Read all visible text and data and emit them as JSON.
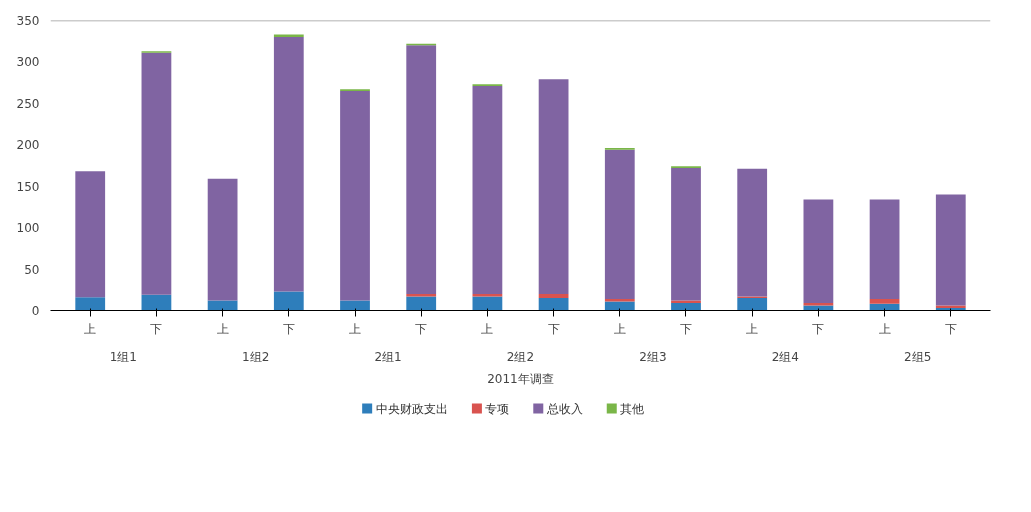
{
  "chart_data": {
    "type": "bar",
    "stacked": true,
    "categories": [
      "上",
      "下",
      "上",
      "下",
      "上",
      "下",
      "上",
      "下",
      "上",
      "下",
      "上",
      "下",
      "上",
      "下"
    ],
    "annotations": [
      "1组1",
      "1组2",
      "2组1",
      "2组2",
      "2组3",
      "2组4",
      "2组5"
    ],
    "xlabel": "2011年调查",
    "series": [
      {
        "name": "中央财政支出",
        "color": "#2e7ebb",
        "values": [
          16,
          19,
          12,
          23,
          12,
          17,
          17,
          15,
          11,
          9,
          15,
          6,
          8,
          3
        ]
      },
      {
        "name": "专项",
        "color": "#d9534f",
        "values": [
          null,
          null,
          null,
          null,
          null,
          3,
          3,
          5,
          3,
          3,
          2,
          3,
          6,
          3
        ]
      },
      {
        "name": "总收入",
        "color": "#8064a2",
        "values": [
          152,
          292,
          147,
          307,
          253,
          300,
          251,
          259,
          180,
          160,
          154,
          125,
          120,
          134
        ]
      },
      {
        "name": "其他",
        "color": "#7ab648",
        "values": [
          null,
          2,
          null,
          3,
          2,
          2,
          2,
          null,
          2,
          2,
          null,
          null,
          null,
          null
        ]
      }
    ],
    "ylim": [
      0,
      350
    ],
    "yticks": [
      0,
      50,
      100,
      150,
      200,
      250,
      300,
      350
    ],
    "ref_lines": [
      {
        "axis": "y",
        "value": 350,
        "label": null,
        "color": "#999999"
      }
    ],
    "grid": false,
    "legend": "bottom"
  }
}
